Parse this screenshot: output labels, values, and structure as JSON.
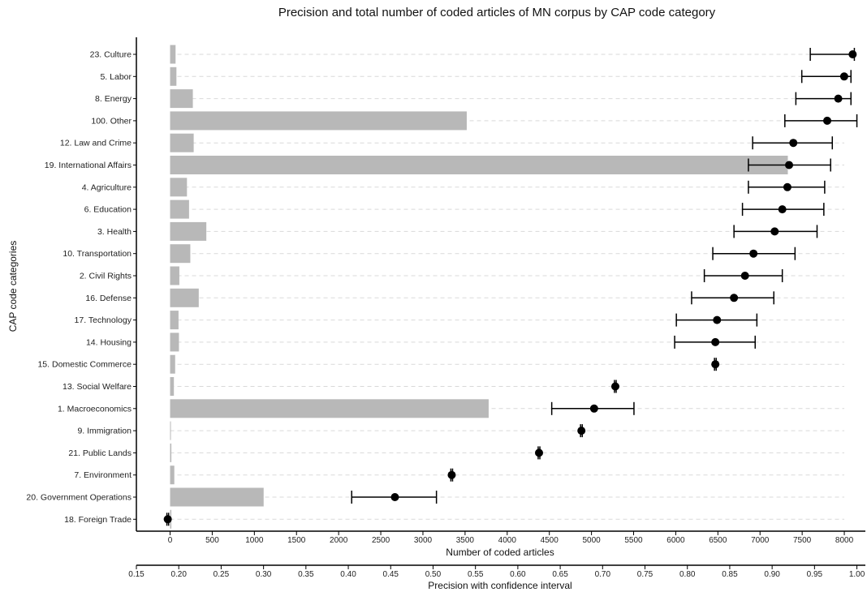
{
  "chart_data": {
    "type": "bar",
    "title": "Precision and total number of coded articles of MN corpus by CAP code category",
    "ylabel": "CAP code categories",
    "xlabel": "Number of coded articles",
    "x2label": "Precision with confidence interval",
    "xlim": [
      -400,
      8250
    ],
    "xticks": [
      0,
      500,
      1000,
      1500,
      2000,
      2500,
      3000,
      3500,
      4000,
      4500,
      5000,
      5500,
      6000,
      6500,
      7000,
      7500,
      8000
    ],
    "x2lim": [
      0.15,
      1.01
    ],
    "x2ticks": [
      "0.15",
      "0.20",
      "0.25",
      "0.30",
      "0.35",
      "0.40",
      "0.45",
      "0.50",
      "0.55",
      "0.60",
      "0.65",
      "0.70",
      "0.75",
      "0.80",
      "0.85",
      "0.90",
      "0.95",
      "1.00"
    ],
    "grid": "horizontal dashed",
    "colors": {
      "bar": "#b8b8b8",
      "point": "#000000",
      "grid": "#d9d9d9",
      "axis": "#000000"
    },
    "categories": [
      "23. Culture",
      "5. Labor",
      "8. Energy",
      "100. Other",
      "12. Law and Crime",
      "19. International Affairs",
      "4. Agriculture",
      "6. Education",
      "3. Health",
      "10. Transportation",
      "2. Civil Rights",
      "16. Defense",
      "17. Technology",
      "14. Housing",
      "15. Domestic Commerce",
      "13. Social Welfare",
      "1. Macroeconomics",
      "9. Immigration",
      "21. Public Lands",
      "7. Environment",
      "20. Government Operations",
      "18. Foreign Trade"
    ],
    "series": [
      {
        "type": "bar",
        "axis": "Number of coded articles",
        "values": [
          65,
          75,
          270,
          3520,
          280,
          7330,
          200,
          225,
          430,
          240,
          110,
          340,
          100,
          105,
          60,
          45,
          3780,
          5,
          15,
          50,
          1110,
          15
        ]
      },
      {
        "type": "point-interval",
        "axis": "Precision with confidence interval",
        "values": [
          0.995,
          0.985,
          0.978,
          0.965,
          0.925,
          0.92,
          0.918,
          0.912,
          0.903,
          0.878,
          0.868,
          0.855,
          0.835,
          0.833,
          0.833,
          0.715,
          0.69,
          0.675,
          0.625,
          0.522,
          0.455,
          0.187
        ],
        "lower": [
          0.945,
          0.935,
          0.928,
          0.915,
          0.877,
          0.872,
          0.872,
          0.865,
          0.855,
          0.83,
          0.82,
          0.805,
          0.787,
          0.785,
          0.832,
          0.714,
          0.64,
          0.674,
          0.624,
          0.521,
          0.404,
          0.186
        ],
        "upper": [
          0.997,
          0.993,
          0.993,
          1.0,
          0.971,
          0.969,
          0.962,
          0.961,
          0.953,
          0.927,
          0.912,
          0.902,
          0.882,
          0.88,
          0.834,
          0.716,
          0.737,
          0.676,
          0.626,
          0.523,
          0.504,
          0.188
        ]
      }
    ]
  }
}
